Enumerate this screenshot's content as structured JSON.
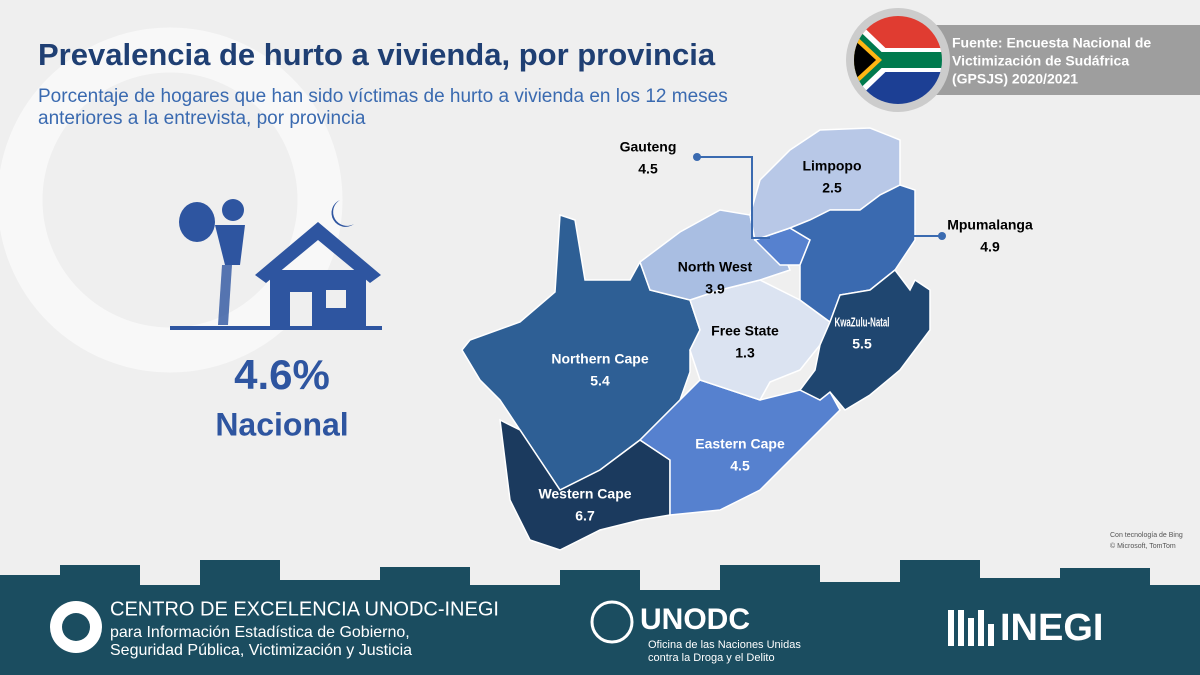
{
  "header": {
    "title": "Prevalencia de hurto a vivienda, por provincia",
    "subtitle_lines": [
      "Porcentaje de hogares que han sido víctimas de hurto a vivienda en los 12 meses",
      "anteriores a la entrevista, por provincia"
    ]
  },
  "source_lines": [
    "Fuente: Encuesta Nacional de",
    "Victimización de Sudáfrica",
    "(GPSJS) 2020/2021"
  ],
  "national": {
    "value_label": "4.6%",
    "label": "Nacional"
  },
  "map": {
    "provinces": [
      {
        "name": "Northern Cape",
        "value": 5.4,
        "color": "#2e5f95"
      },
      {
        "name": "Western Cape",
        "value": 6.7,
        "color": "#1b3a5e"
      },
      {
        "name": "Eastern Cape",
        "value": 4.5,
        "color": "#5681cf"
      },
      {
        "name": "Free State",
        "value": 1.3,
        "color": "#dbe3f1"
      },
      {
        "name": "North West",
        "value": 3.9,
        "color": "#a9bee2"
      },
      {
        "name": "Gauteng",
        "value": 4.5,
        "color": "#5681cf"
      },
      {
        "name": "Limpopo",
        "value": 2.5,
        "color": "#b8c8e7"
      },
      {
        "name": "Mpumalanga",
        "value": 4.9,
        "color": "#3a6ab0"
      },
      {
        "name": "KwaZulu-Natal",
        "value": 5.5,
        "color": "#1f4670"
      }
    ],
    "attribution_lines": [
      "Con tecnología de Bing",
      "© Microsoft, TomTom"
    ]
  },
  "footer": {
    "center_lines": [
      "CENTRO DE EXCELENCIA UNODC-INEGI",
      "para Información Estadística de Gobierno,",
      "Seguridad Pública, Victimización y Justicia"
    ],
    "unodc": "UNODC",
    "unodc_lines": [
      "Oficina de las Naciones Unidas",
      "contra la Droga y el Delito"
    ],
    "inegi": "INEGI"
  }
}
